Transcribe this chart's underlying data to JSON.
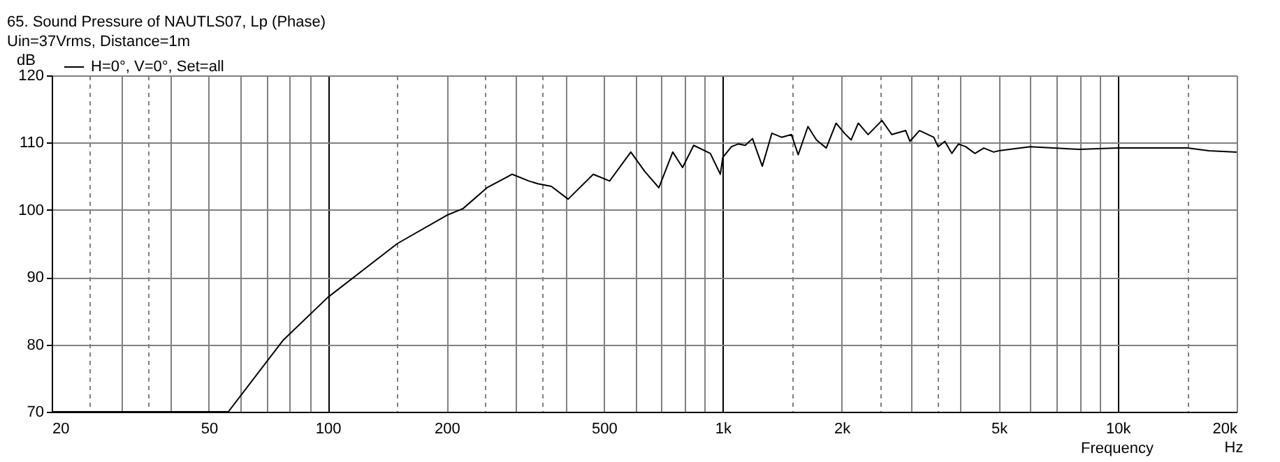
{
  "chart_data": {
    "type": "line",
    "title": "65. Sound Pressure of NAUTLS07, Lp (Phase)",
    "subtitle": "Uin=37Vrms, Distance=1m",
    "ylabel": "dB",
    "xlabel": "Frequency",
    "annotations": [
      "Hz"
    ],
    "log": "x",
    "grid": true,
    "legend": "top left",
    "xlim": [
      20,
      20000
    ],
    "ylim": [
      70,
      120
    ],
    "xticks": [
      {
        "value": 20,
        "label": "20"
      },
      {
        "value": 25,
        "label": null
      },
      {
        "value": 30,
        "label": null
      },
      {
        "value": 35,
        "label": null
      },
      {
        "value": 40,
        "label": null
      },
      {
        "value": 50,
        "label": "50"
      },
      {
        "value": 60,
        "label": null
      },
      {
        "value": 70,
        "label": null
      },
      {
        "value": 80,
        "label": null
      },
      {
        "value": 90,
        "label": null
      },
      {
        "value": 100,
        "label": "100"
      },
      {
        "value": 150,
        "label": null
      },
      {
        "value": 200,
        "label": "200"
      },
      {
        "value": 250,
        "label": null
      },
      {
        "value": 300,
        "label": null
      },
      {
        "value": 350,
        "label": null
      },
      {
        "value": 400,
        "label": null
      },
      {
        "value": 500,
        "label": "500"
      },
      {
        "value": 600,
        "label": null
      },
      {
        "value": 700,
        "label": null
      },
      {
        "value": 800,
        "label": null
      },
      {
        "value": 900,
        "label": null
      },
      {
        "value": 1000,
        "label": "1k"
      },
      {
        "value": 1500,
        "label": null
      },
      {
        "value": 2000,
        "label": "2k"
      },
      {
        "value": 2500,
        "label": null
      },
      {
        "value": 3000,
        "label": null
      },
      {
        "value": 3500,
        "label": null
      },
      {
        "value": 4000,
        "label": null
      },
      {
        "value": 5000,
        "label": "5k"
      },
      {
        "value": 6000,
        "label": null
      },
      {
        "value": 7000,
        "label": null
      },
      {
        "value": 8000,
        "label": null
      },
      {
        "value": 9000,
        "label": null
      },
      {
        "value": 10000,
        "label": "10k"
      },
      {
        "value": 15000,
        "label": null
      },
      {
        "value": 20000,
        "label": "20k"
      }
    ],
    "yticks": [
      70,
      80,
      90,
      100,
      110,
      120
    ],
    "series": [
      {
        "name": "H=0°, V=0°, Set=all",
        "color": "#000000",
        "x": [
          20,
          56,
          77,
          100,
          150,
          200,
          220,
          253,
          293,
          323,
          340,
          368,
          406,
          470,
          517,
          585,
          635,
          689,
          747,
          791,
          844,
          930,
          986,
          1000,
          1052,
          1094,
          1140,
          1189,
          1259,
          1331,
          1409,
          1492,
          1552,
          1643,
          1726,
          1828,
          1936,
          2032,
          2113,
          2203,
          2333,
          2529,
          2679,
          2904,
          2977,
          3148,
          3420,
          3508,
          3650,
          3800,
          3950,
          4120,
          4350,
          4580,
          4850,
          5000,
          6000,
          8000,
          10000,
          15000,
          17000,
          20000
        ],
        "values": [
          70,
          70,
          80.6,
          87,
          95,
          99.2,
          100.2,
          103.3,
          105.3,
          104.3,
          103.9,
          103.5,
          101.6,
          105.3,
          104.3,
          108.6,
          105.7,
          103.3,
          108.6,
          106.3,
          109.6,
          108.4,
          105.3,
          107.8,
          109.4,
          109.8,
          109.6,
          110.6,
          106.5,
          111.4,
          110.8,
          111.2,
          108.2,
          112.4,
          110.4,
          109.2,
          112.9,
          111.4,
          110.4,
          112.9,
          111.2,
          113.3,
          111.2,
          111.8,
          110.2,
          111.8,
          110.8,
          109.4,
          110.2,
          108.4,
          109.8,
          109.4,
          108.4,
          109.2,
          108.6,
          108.8,
          109.4,
          109.0,
          109.2,
          109.2,
          108.8,
          108.6
        ]
      }
    ]
  }
}
